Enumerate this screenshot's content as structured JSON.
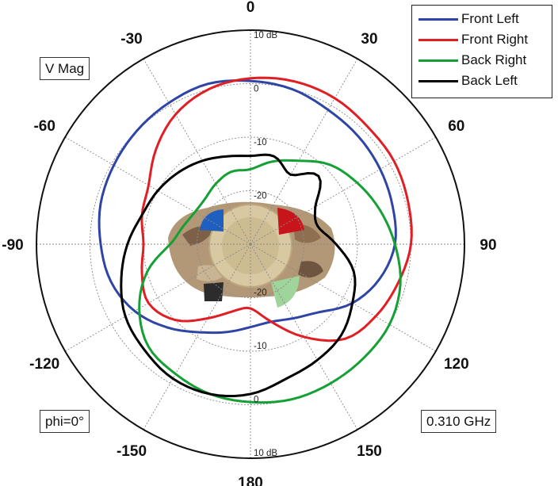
{
  "labels": {
    "quantity": "V Mag",
    "cut": "phi=0°",
    "frequency": "0.310 GHz"
  },
  "colors": {
    "front_left": "#2f45a6",
    "front_right": "#e01e24",
    "back_right": "#15a035",
    "back_left": "#000000"
  },
  "chart_data": {
    "type": "polar-line",
    "angle_ticks": [
      {
        "deg": 0,
        "label": "0"
      },
      {
        "deg": 30,
        "label": "30"
      },
      {
        "deg": 60,
        "label": "60"
      },
      {
        "deg": 90,
        "label": "90"
      },
      {
        "deg": 120,
        "label": "120"
      },
      {
        "deg": 150,
        "label": "150"
      },
      {
        "deg": 180,
        "label": "180"
      },
      {
        "deg": -150,
        "label": "-150"
      },
      {
        "deg": -120,
        "label": "-120"
      },
      {
        "deg": -90,
        "label": "-90"
      },
      {
        "deg": -60,
        "label": "-60"
      },
      {
        "deg": -30,
        "label": "-30"
      }
    ],
    "radial_range_db": [
      -30,
      10
    ],
    "radial_ticks": [
      {
        "value": 10,
        "label": "10 dB"
      },
      {
        "value": 0,
        "label": "0"
      },
      {
        "value": -10,
        "label": "-10"
      },
      {
        "value": -20,
        "label": "-20"
      }
    ],
    "grid": true,
    "legend_position": "top-right",
    "series": [
      {
        "name": "Front Left",
        "color_key": "front_left",
        "angles": [
          0,
          15,
          30,
          45,
          60,
          75,
          90,
          105,
          120,
          135,
          150,
          165,
          180,
          195,
          210,
          225,
          240,
          255,
          270,
          285,
          300,
          315,
          330,
          345
        ],
        "values": [
          0.5,
          0,
          -1,
          -1.5,
          -2,
          -2.5,
          -3,
          -5,
          -8,
          -12,
          -14,
          -15,
          -14.5,
          -13,
          -11,
          -8,
          -5,
          -3,
          -2,
          -1,
          -0.5,
          0,
          0.5,
          1
        ]
      },
      {
        "name": "Front Right",
        "color_key": "front_right",
        "angles": [
          0,
          15,
          30,
          45,
          60,
          75,
          90,
          105,
          120,
          135,
          150,
          165,
          180,
          195,
          210,
          225,
          240,
          255,
          270,
          285,
          300,
          315,
          330,
          345
        ],
        "values": [
          1,
          1.5,
          1.5,
          1,
          1,
          0.5,
          0,
          -1.5,
          -3,
          -5,
          -10,
          -15,
          -18,
          -17,
          -14,
          -10,
          -8,
          -9,
          -10,
          -9,
          -8,
          -5,
          -2,
          0
        ]
      },
      {
        "name": "Back Right",
        "color_key": "back_right",
        "angles": [
          0,
          15,
          30,
          45,
          60,
          75,
          90,
          105,
          120,
          135,
          150,
          165,
          180,
          195,
          210,
          225,
          240,
          255,
          270,
          285,
          300,
          315,
          330,
          345
        ],
        "values": [
          -16,
          -14,
          -12,
          -9,
          -7,
          -5,
          -3,
          -1,
          0,
          0,
          0,
          0,
          -0.5,
          -1,
          -2,
          -3,
          -6,
          -10,
          -15,
          -17,
          -18,
          -18,
          -17,
          -16
        ]
      },
      {
        "name": "Back Left",
        "color_key": "back_left",
        "angles": [
          0,
          15,
          30,
          45,
          60,
          75,
          90,
          105,
          120,
          135,
          150,
          165,
          180,
          195,
          210,
          225,
          240,
          255,
          270,
          285,
          300,
          315,
          330,
          345
        ],
        "values": [
          -13.5,
          -13,
          -15,
          -12,
          -16,
          -17,
          -14,
          -10,
          -8,
          -6,
          -5,
          -4,
          -2,
          -1,
          -1,
          -2,
          -3,
          -5,
          -7,
          -9,
          -10,
          -11,
          -12,
          -13
        ]
      }
    ]
  }
}
